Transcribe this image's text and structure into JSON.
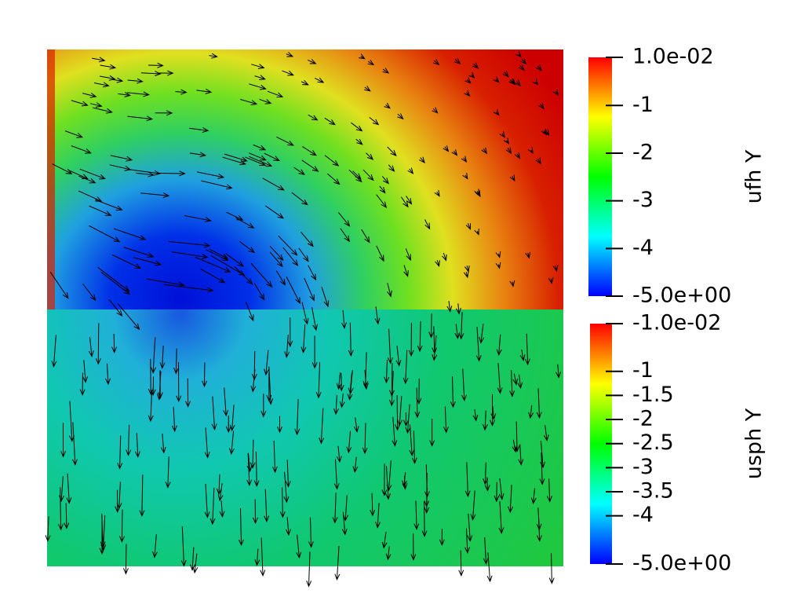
{
  "colorbars": [
    {
      "title": "ufh Y",
      "range": [
        -5,
        0.01
      ],
      "ticks": [
        {
          "value": 0.01,
          "label": "1.0e-02"
        },
        -1,
        -2,
        -3,
        -4,
        {
          "value": -5,
          "label": "-5.0e+00"
        }
      ]
    },
    {
      "title": "usph Y",
      "range": [
        -5,
        -0.01
      ],
      "ticks": [
        {
          "value": -0.01,
          "label": "-1.0e-02"
        },
        -1,
        -1.5,
        -2,
        -2.5,
        -3,
        -3.5,
        -4,
        {
          "value": -5,
          "label": "-5.0e+00"
        }
      ]
    }
  ]
}
